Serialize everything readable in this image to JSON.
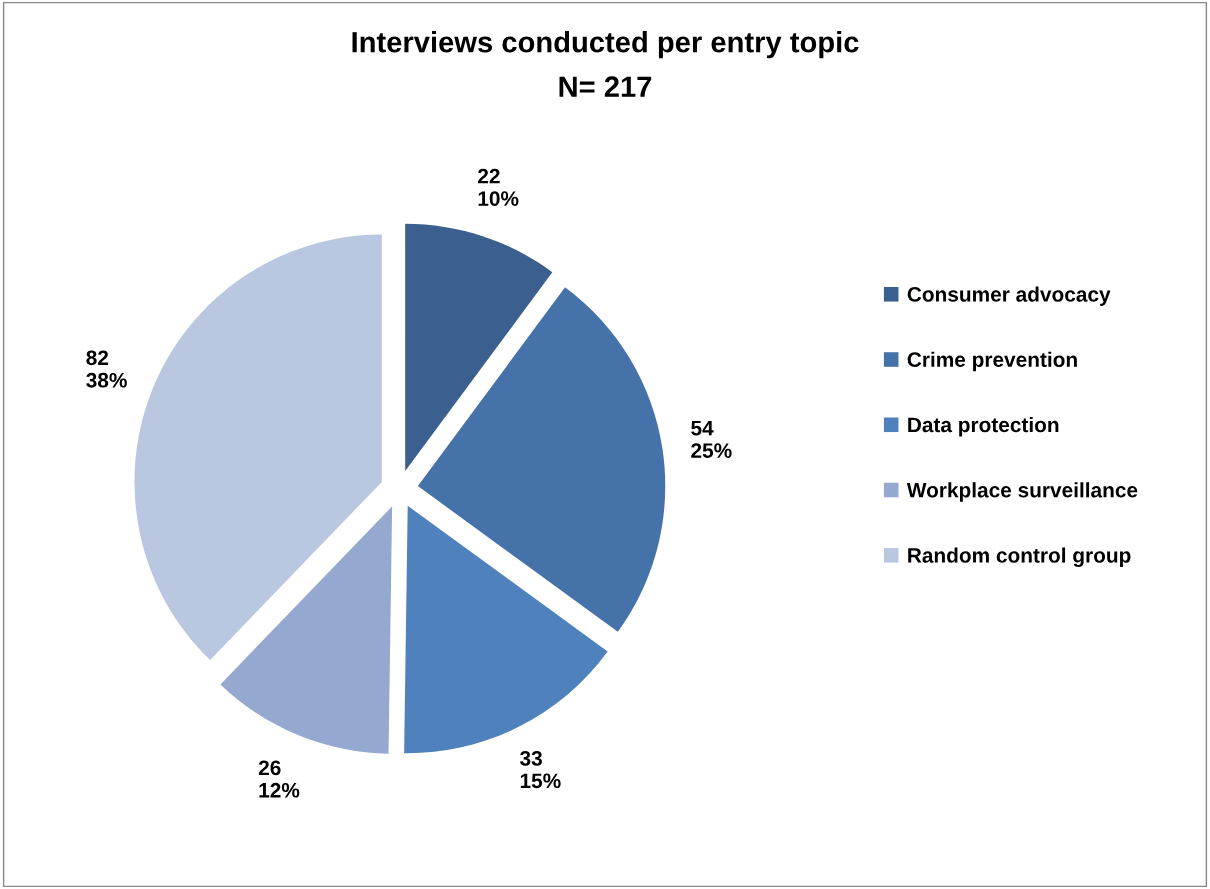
{
  "chart_data": {
    "type": "pie",
    "title": "Interviews conducted per entry topic",
    "subtitle": "N= 217",
    "categories": [
      "Consumer advocacy",
      "Crime prevention",
      "Data protection",
      "Workplace surveillance",
      "Random control group"
    ],
    "values": [
      22,
      54,
      33,
      26,
      82
    ],
    "colors": [
      "#3b5f8e",
      "#4573a9",
      "#4f81bd",
      "#95a9d0",
      "#b9c7e0"
    ],
    "value_labels": [
      "22\n10%",
      "54\n25%",
      "33\n15%",
      "26\n12%",
      "82\n38%"
    ],
    "legend": "right"
  }
}
